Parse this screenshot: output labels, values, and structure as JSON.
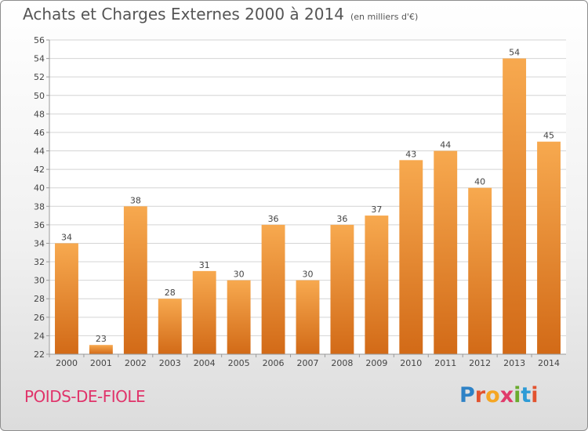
{
  "title": "Achats et Charges Externes 2000 à 2014",
  "subtitle": "(en milliers d'€)",
  "town": "POIDS-DE-FIOLE",
  "brand": {
    "text": "Proxiti",
    "colors": [
      "#2e82c6",
      "#e2532f",
      "#f5a623",
      "#e03a6b",
      "#6aab2e",
      "#2e9bd6",
      "#e2532f"
    ]
  },
  "bar_color_top": "#f7a94f",
  "bar_color_bottom": "#d26a17",
  "chart_data": {
    "type": "bar",
    "title": "Achats et Charges Externes 2000 à 2014",
    "xlabel": "",
    "ylabel": "",
    "categories": [
      "2000",
      "2001",
      "2002",
      "2003",
      "2004",
      "2005",
      "2006",
      "2007",
      "2008",
      "2009",
      "2010",
      "2011",
      "2012",
      "2013",
      "2014"
    ],
    "values": [
      34,
      23,
      38,
      28,
      31,
      30,
      36,
      30,
      36,
      37,
      43,
      44,
      40,
      54,
      45
    ],
    "ylim": [
      22,
      56
    ],
    "yticks": [
      22,
      24,
      26,
      28,
      30,
      32,
      34,
      36,
      38,
      40,
      42,
      44,
      46,
      48,
      50,
      52,
      54,
      56
    ],
    "grid": true,
    "data_labels": true
  }
}
